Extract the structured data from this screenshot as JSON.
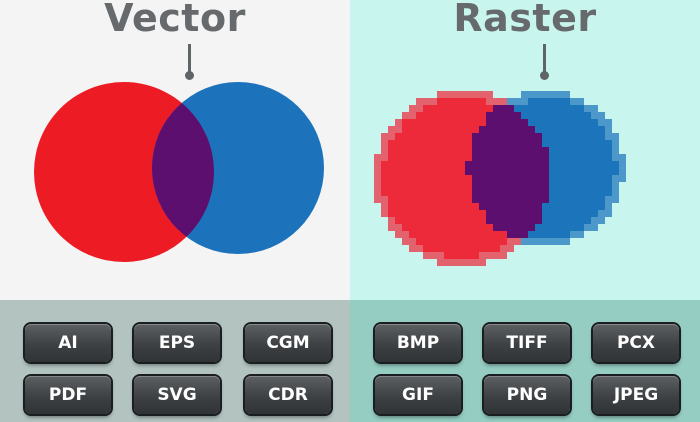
{
  "vector": {
    "title": "Vector",
    "formats": [
      "AI",
      "EPS",
      "CGM",
      "PDF",
      "SVG",
      "CDR"
    ],
    "colors": {
      "background": "#f4f4f4",
      "circle_left": "#ec1b24",
      "circle_right": "#1c73bb",
      "overlap": "#5c0f6e"
    }
  },
  "raster": {
    "title": "Raster",
    "formats": [
      "BMP",
      "TIFF",
      "PCX",
      "GIF",
      "PNG",
      "JPEG"
    ],
    "colors": {
      "background": "#c9f5ef",
      "circle_left": "#ec2a3a",
      "circle_right": "#1c75bb",
      "overlap": "#5c0f6e"
    }
  }
}
